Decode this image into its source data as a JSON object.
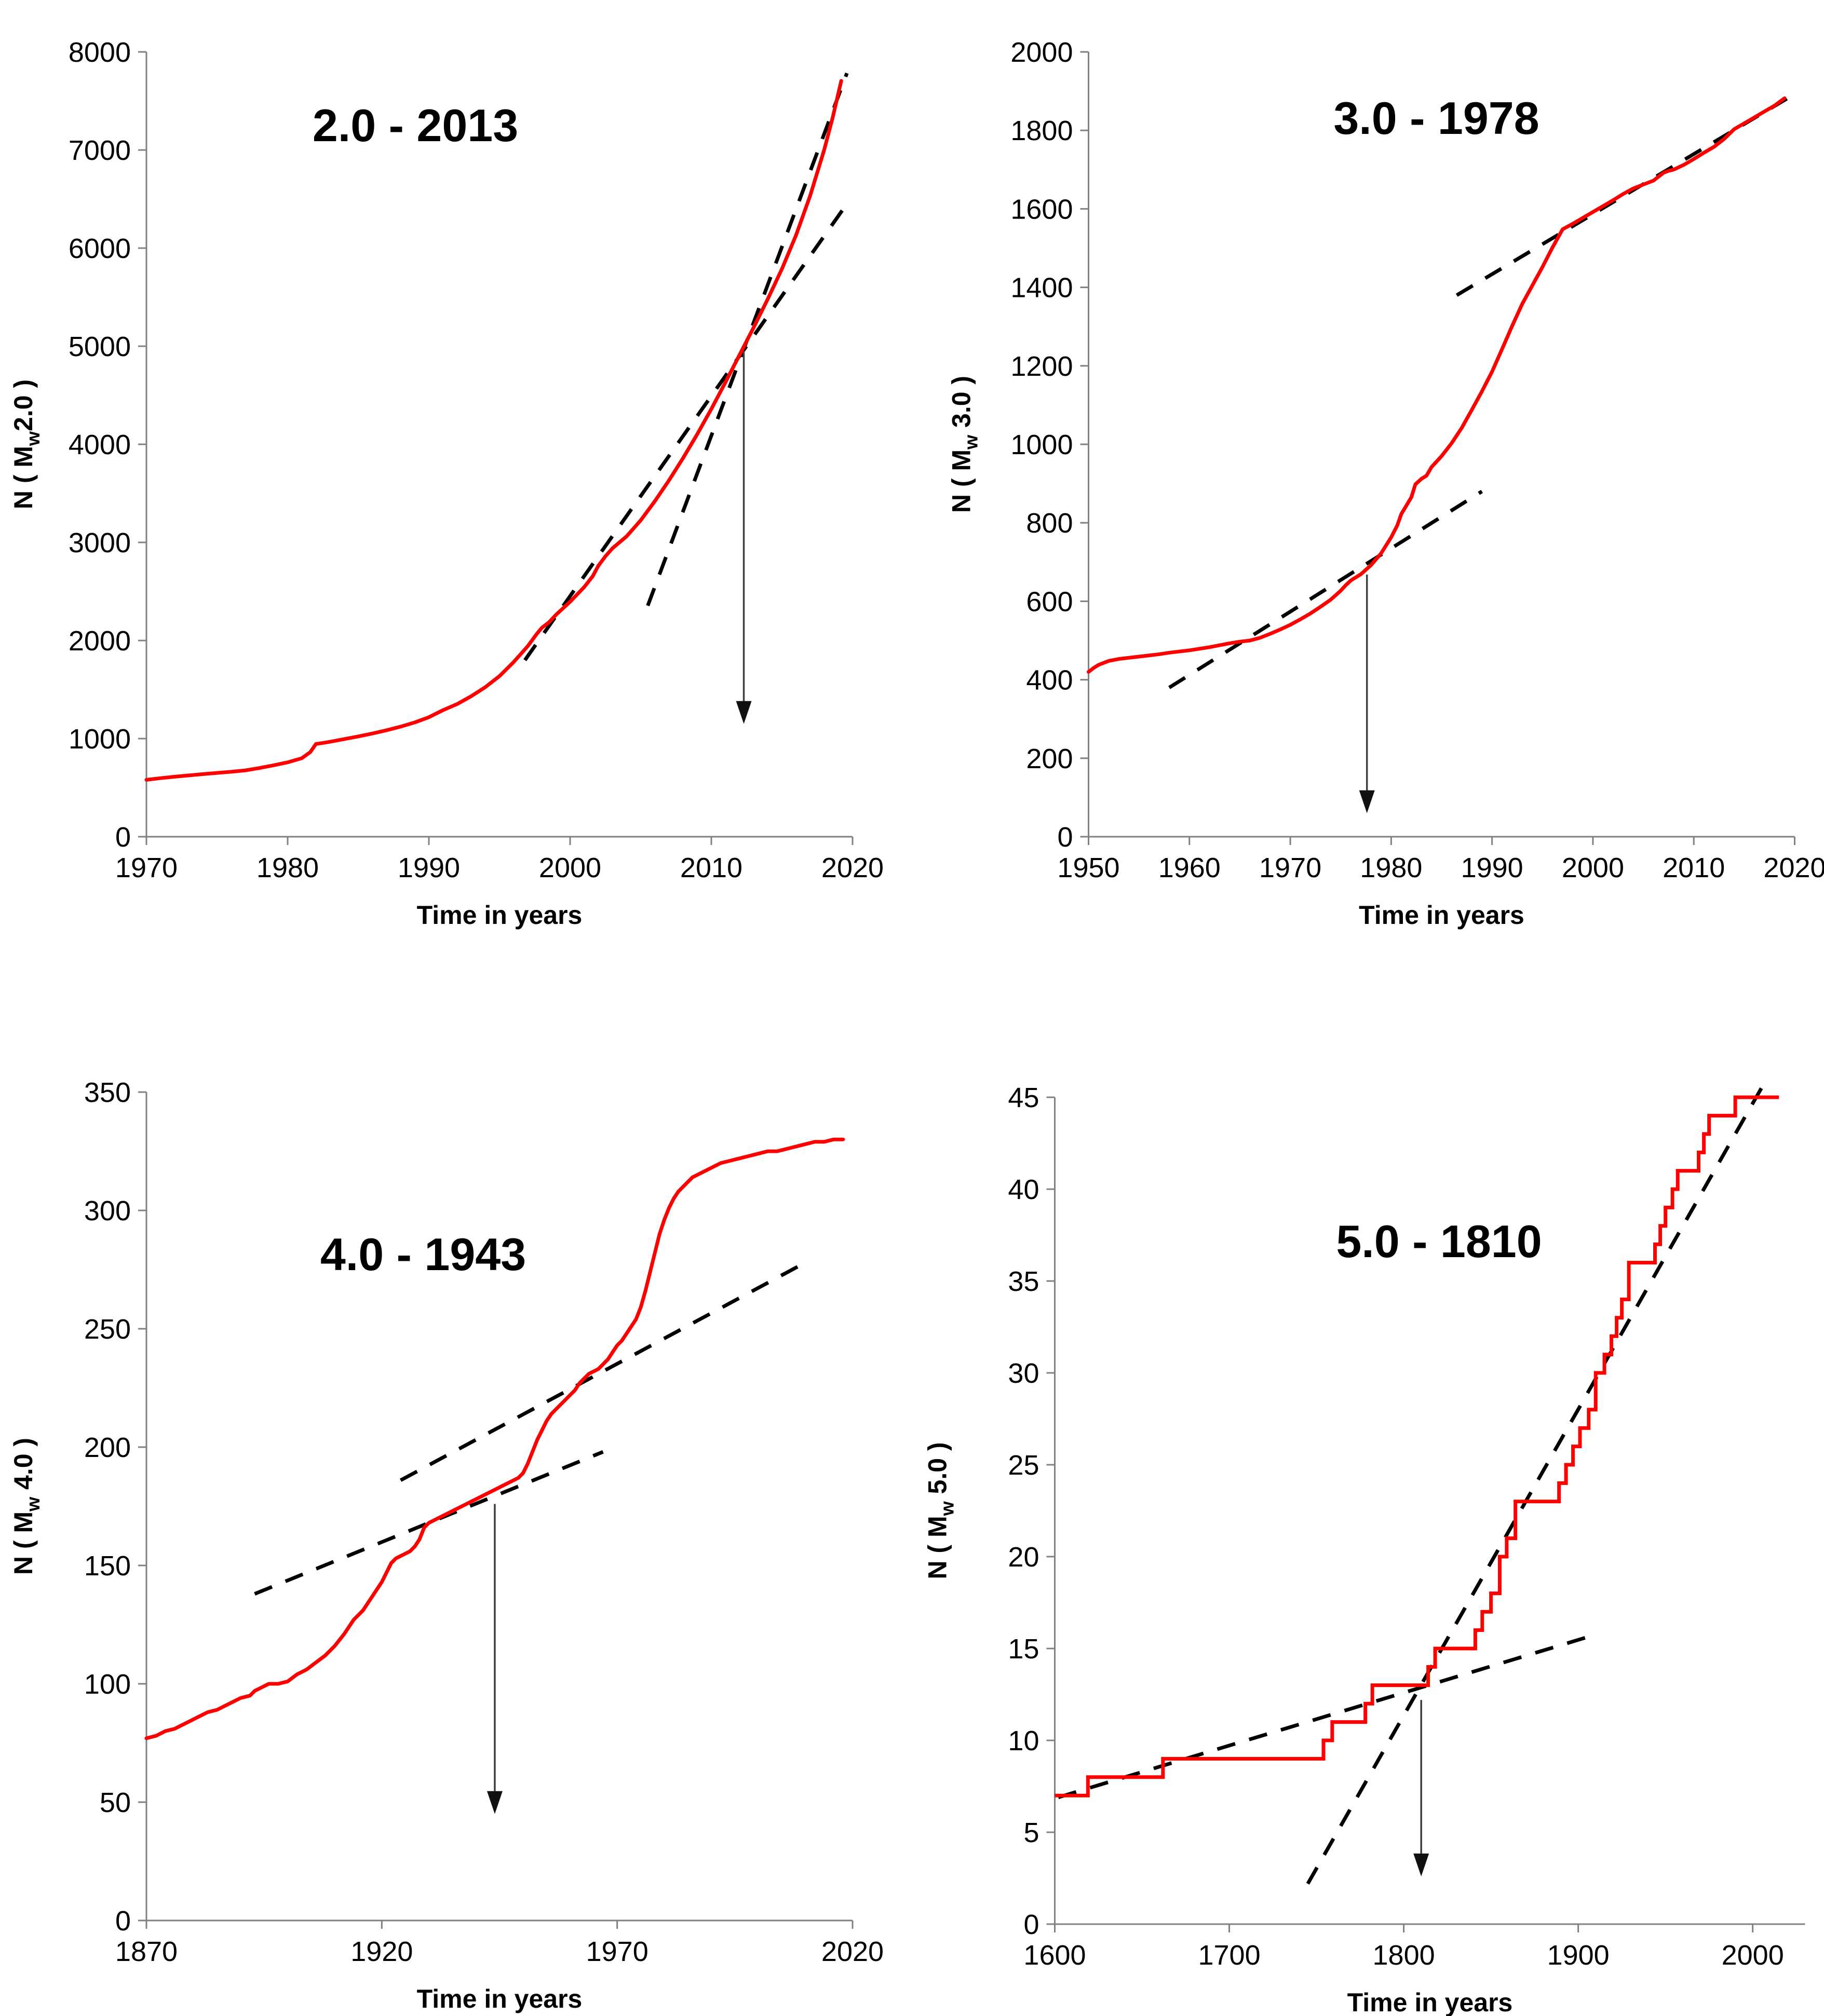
{
  "page": {
    "background": "#ffffff",
    "description": "Four-panel cumulative earthquake count figure"
  },
  "colors": {
    "curve": "#fe0000",
    "trend": "#000000",
    "axis": "#808080",
    "arrow_line": "#404040",
    "arrow_head": "#111111",
    "text": "#000000"
  },
  "chart_data": [
    {
      "id": "mw2",
      "type": "line",
      "title": "2.0 - 2013",
      "xlabel": "Time in years",
      "ylabel_prefix": "N ( M",
      "ylabel_sub": "w",
      "ylabel_suffix": "2.0 )",
      "xlim": [
        1970,
        2020
      ],
      "ylim": [
        0,
        8000
      ],
      "xticks": [
        1970,
        1980,
        1990,
        2000,
        2010,
        2020
      ],
      "yticks": [
        0,
        1000,
        2000,
        3000,
        4000,
        5000,
        6000,
        7000,
        8000
      ],
      "grid": false,
      "curve": [
        [
          1970,
          580
        ],
        [
          1971,
          597
        ],
        [
          1972,
          612
        ],
        [
          1973,
          625
        ],
        [
          1974,
          638
        ],
        [
          1975,
          650
        ],
        [
          1976,
          662
        ],
        [
          1977,
          676
        ],
        [
          1978,
          700
        ],
        [
          1979,
          728
        ],
        [
          1980,
          758
        ],
        [
          1981,
          800
        ],
        [
          1981.6,
          862
        ],
        [
          1982,
          945
        ],
        [
          1982.6,
          958
        ],
        [
          1983,
          968
        ],
        [
          1984,
          995
        ],
        [
          1985,
          1022
        ],
        [
          1986,
          1052
        ],
        [
          1987,
          1085
        ],
        [
          1988,
          1122
        ],
        [
          1989,
          1165
        ],
        [
          1990,
          1218
        ],
        [
          1991,
          1290
        ],
        [
          1992,
          1352
        ],
        [
          1993,
          1432
        ],
        [
          1994,
          1525
        ],
        [
          1995,
          1637
        ],
        [
          1996,
          1780
        ],
        [
          1997,
          1942
        ],
        [
          1997.6,
          2060
        ],
        [
          1998,
          2130
        ],
        [
          1998.5,
          2185
        ],
        [
          1999,
          2262
        ],
        [
          2000,
          2395
        ],
        [
          2001,
          2545
        ],
        [
          2001.6,
          2655
        ],
        [
          2002,
          2762
        ],
        [
          2002.5,
          2858
        ],
        [
          2003,
          2940
        ],
        [
          2004,
          3062
        ],
        [
          2005,
          3225
        ],
        [
          2006,
          3420
        ],
        [
          2007,
          3632
        ],
        [
          2008,
          3860
        ],
        [
          2009,
          4102
        ],
        [
          2010,
          4360
        ],
        [
          2011,
          4632
        ],
        [
          2012,
          4912
        ],
        [
          2013,
          5192
        ],
        [
          2014,
          5482
        ],
        [
          2015,
          5788
        ],
        [
          2016,
          6132
        ],
        [
          2017,
          6535
        ],
        [
          2018,
          7005
        ],
        [
          2018.6,
          7335
        ],
        [
          2019.2,
          7705
        ]
      ],
      "trend_lines": [
        {
          "x1": 1996.8,
          "y1": 1800,
          "x2": 2019.3,
          "y2": 6390
        },
        {
          "x1": 2005.5,
          "y1": 2355,
          "x2": 2019.6,
          "y2": 7783
        }
      ],
      "arrow": {
        "x": 2012.3,
        "y_from": 4950,
        "y_to": 1150
      }
    },
    {
      "id": "mw3",
      "type": "line",
      "title": "3.0 - 1978",
      "xlabel": "Time in years",
      "ylabel_prefix": "N ( M",
      "ylabel_sub": "w",
      "ylabel_suffix": " 3.0 )",
      "xlim": [
        1950,
        2020
      ],
      "ylim": [
        0,
        2000
      ],
      "xticks": [
        1950,
        1960,
        1970,
        1980,
        1990,
        2000,
        2010,
        2020
      ],
      "yticks": [
        0,
        200,
        400,
        600,
        800,
        1000,
        1200,
        1400,
        1600,
        1800,
        2000
      ],
      "grid": false,
      "curve": [
        [
          1950,
          420
        ],
        [
          1950.5,
          430
        ],
        [
          1951,
          438
        ],
        [
          1952,
          448
        ],
        [
          1953,
          453
        ],
        [
          1954,
          456
        ],
        [
          1955,
          459
        ],
        [
          1956,
          462
        ],
        [
          1957,
          465
        ],
        [
          1958,
          469
        ],
        [
          1959,
          472
        ],
        [
          1960,
          475
        ],
        [
          1961,
          479
        ],
        [
          1962,
          483
        ],
        [
          1963,
          488
        ],
        [
          1964,
          493
        ],
        [
          1965,
          497
        ],
        [
          1966,
          500
        ],
        [
          1967,
          507
        ],
        [
          1968,
          517
        ],
        [
          1969,
          528
        ],
        [
          1970,
          540
        ],
        [
          1971,
          554
        ],
        [
          1972,
          569
        ],
        [
          1973,
          586
        ],
        [
          1974,
          604
        ],
        [
          1975,
          627
        ],
        [
          1975.5,
          641
        ],
        [
          1976,
          653
        ],
        [
          1977,
          669
        ],
        [
          1978,
          692
        ],
        [
          1979,
          722
        ],
        [
          1980,
          763
        ],
        [
          1980.6,
          793
        ],
        [
          1981,
          822
        ],
        [
          1982,
          865
        ],
        [
          1982.4,
          898
        ],
        [
          1983,
          912
        ],
        [
          1983.5,
          920
        ],
        [
          1984,
          942
        ],
        [
          1985,
          970
        ],
        [
          1986,
          1003
        ],
        [
          1987,
          1042
        ],
        [
          1988,
          1088
        ],
        [
          1989,
          1135
        ],
        [
          1990,
          1185
        ],
        [
          1991,
          1243
        ],
        [
          1992,
          1302
        ],
        [
          1993,
          1358
        ],
        [
          1994,
          1405
        ],
        [
          1995,
          1452
        ],
        [
          1996,
          1502
        ],
        [
          1997,
          1548
        ],
        [
          1998,
          1562
        ],
        [
          1999,
          1577
        ],
        [
          2000,
          1592
        ],
        [
          2001,
          1607
        ],
        [
          2002,
          1622
        ],
        [
          2003,
          1638
        ],
        [
          2004,
          1652
        ],
        [
          2005,
          1662
        ],
        [
          2006,
          1672
        ],
        [
          2007,
          1692
        ],
        [
          2007.5,
          1697
        ],
        [
          2008,
          1700
        ],
        [
          2009,
          1712
        ],
        [
          2010,
          1727
        ],
        [
          2011,
          1743
        ],
        [
          2012,
          1758
        ],
        [
          2013,
          1778
        ],
        [
          2014,
          1803
        ],
        [
          2015,
          1818
        ],
        [
          2016,
          1833
        ],
        [
          2017,
          1848
        ],
        [
          2018,
          1863
        ],
        [
          2019,
          1882
        ]
      ],
      "trend_lines": [
        {
          "x1": 1958,
          "y1": 380,
          "x2": 1989,
          "y2": 880
        },
        {
          "x1": 1986.5,
          "y1": 1380,
          "x2": 2019.5,
          "y2": 1885
        }
      ],
      "arrow": {
        "x": 1977.6,
        "y_from": 668,
        "y_to": 60
      }
    },
    {
      "id": "mw4",
      "type": "line",
      "title": "4.0 - 1943",
      "xlabel": "Time in years",
      "ylabel_prefix": "N ( M",
      "ylabel_sub": "w",
      "ylabel_suffix": " 4.0 )",
      "xlim": [
        1870,
        2020
      ],
      "ylim": [
        0,
        350
      ],
      "xticks": [
        1870,
        1920,
        1970,
        2020
      ],
      "yticks": [
        0,
        50,
        100,
        150,
        200,
        250,
        300,
        350
      ],
      "grid": false,
      "curve": [
        [
          1870,
          77
        ],
        [
          1872,
          78
        ],
        [
          1874,
          80
        ],
        [
          1876,
          81
        ],
        [
          1878,
          83
        ],
        [
          1880,
          85
        ],
        [
          1882,
          87
        ],
        [
          1883,
          88
        ],
        [
          1885,
          89
        ],
        [
          1887,
          91
        ],
        [
          1888,
          92
        ],
        [
          1890,
          94
        ],
        [
          1892,
          95
        ],
        [
          1893,
          97
        ],
        [
          1894,
          98
        ],
        [
          1896,
          100
        ],
        [
          1898,
          100
        ],
        [
          1900,
          101
        ],
        [
          1902,
          104
        ],
        [
          1904,
          106
        ],
        [
          1906,
          109
        ],
        [
          1908,
          112
        ],
        [
          1910,
          116
        ],
        [
          1912,
          121
        ],
        [
          1913,
          124
        ],
        [
          1914,
          127
        ],
        [
          1915,
          129
        ],
        [
          1916,
          131
        ],
        [
          1917,
          134
        ],
        [
          1918,
          137
        ],
        [
          1919,
          140
        ],
        [
          1920,
          143
        ],
        [
          1921,
          147
        ],
        [
          1922,
          151
        ],
        [
          1923,
          153
        ],
        [
          1925,
          155
        ],
        [
          1926,
          156
        ],
        [
          1927,
          158
        ],
        [
          1928,
          161
        ],
        [
          1928.6,
          164
        ],
        [
          1929,
          166
        ],
        [
          1930,
          168
        ],
        [
          1931,
          169
        ],
        [
          1933,
          171
        ],
        [
          1935,
          173
        ],
        [
          1937,
          175
        ],
        [
          1939,
          177
        ],
        [
          1941,
          179
        ],
        [
          1943,
          181
        ],
        [
          1945,
          183
        ],
        [
          1947,
          185
        ],
        [
          1949,
          187
        ],
        [
          1950,
          189
        ],
        [
          1951,
          193
        ],
        [
          1952,
          198
        ],
        [
          1953,
          203
        ],
        [
          1954,
          207
        ],
        [
          1955,
          211
        ],
        [
          1956,
          214
        ],
        [
          1957,
          216
        ],
        [
          1958,
          218
        ],
        [
          1959,
          220
        ],
        [
          1960,
          222
        ],
        [
          1961,
          224
        ],
        [
          1962,
          227
        ],
        [
          1963,
          229
        ],
        [
          1964,
          231
        ],
        [
          1965,
          232
        ],
        [
          1966,
          233
        ],
        [
          1967,
          235
        ],
        [
          1968,
          237
        ],
        [
          1969,
          240
        ],
        [
          1970,
          243
        ],
        [
          1971,
          245
        ],
        [
          1972,
          248
        ],
        [
          1973,
          251
        ],
        [
          1974,
          254
        ],
        [
          1975,
          259
        ],
        [
          1976,
          266
        ],
        [
          1977,
          274
        ],
        [
          1978,
          282
        ],
        [
          1979,
          290
        ],
        [
          1980,
          296
        ],
        [
          1981,
          301
        ],
        [
          1982,
          305
        ],
        [
          1983,
          308
        ],
        [
          1984,
          310
        ],
        [
          1985,
          312
        ],
        [
          1986,
          314
        ],
        [
          1987,
          315
        ],
        [
          1988,
          316
        ],
        [
          1990,
          318
        ],
        [
          1992,
          320
        ],
        [
          1994,
          321
        ],
        [
          1996,
          322
        ],
        [
          1998,
          323
        ],
        [
          2000,
          324
        ],
        [
          2002,
          325
        ],
        [
          2004,
          325
        ],
        [
          2006,
          326
        ],
        [
          2008,
          327
        ],
        [
          2010,
          328
        ],
        [
          2012,
          329
        ],
        [
          2014,
          329
        ],
        [
          2016,
          330
        ],
        [
          2018,
          330
        ]
      ],
      "trend_lines": [
        {
          "x1": 1893,
          "y1": 138,
          "x2": 1967,
          "y2": 198
        },
        {
          "x1": 1924,
          "y1": 186,
          "x2": 2010,
          "y2": 278
        }
      ],
      "arrow": {
        "x": 1944,
        "y_from": 176,
        "y_to": 45
      }
    },
    {
      "id": "mw5",
      "type": "line",
      "line_style": "step",
      "title": "5.0 - 1810",
      "xlabel": "Time in years",
      "ylabel_prefix": "N ( M",
      "ylabel_sub": "w",
      "ylabel_suffix": " 5.0 )",
      "xlim": [
        1600,
        2030
      ],
      "ylim": [
        0,
        45
      ],
      "xticks": [
        1600,
        1700,
        1800,
        1900,
        2000
      ],
      "yticks": [
        0,
        5,
        10,
        15,
        20,
        25,
        30,
        35,
        40,
        45
      ],
      "grid": false,
      "curve": [
        [
          1600,
          7
        ],
        [
          1619,
          8
        ],
        [
          1662,
          9
        ],
        [
          1754,
          10
        ],
        [
          1759,
          11
        ],
        [
          1778,
          12
        ],
        [
          1782,
          13
        ],
        [
          1814,
          14
        ],
        [
          1818,
          15
        ],
        [
          1841,
          16
        ],
        [
          1845,
          17
        ],
        [
          1850,
          18
        ],
        [
          1855,
          20
        ],
        [
          1859,
          21
        ],
        [
          1864,
          23
        ],
        [
          1889,
          24
        ],
        [
          1893,
          25
        ],
        [
          1897,
          26
        ],
        [
          1901,
          27
        ],
        [
          1906,
          28
        ],
        [
          1910,
          30
        ],
        [
          1915,
          31
        ],
        [
          1919,
          32
        ],
        [
          1922,
          33
        ],
        [
          1925,
          34
        ],
        [
          1929,
          36
        ],
        [
          1944,
          37
        ],
        [
          1947,
          38
        ],
        [
          1950,
          39
        ],
        [
          1954,
          40
        ],
        [
          1957,
          41
        ],
        [
          1969,
          42
        ],
        [
          1972,
          43
        ],
        [
          1975,
          44
        ],
        [
          1990,
          45
        ],
        [
          2015,
          45
        ]
      ],
      "trend_lines": [
        {
          "x1": 1602,
          "y1": 6.9,
          "x2": 1908,
          "y2": 15.7
        },
        {
          "x1": 1745,
          "y1": 2.2,
          "x2": 2005,
          "y2": 45.5
        }
      ],
      "arrow": {
        "x": 1810,
        "y_from": 12.2,
        "y_to": 2.6
      }
    }
  ]
}
